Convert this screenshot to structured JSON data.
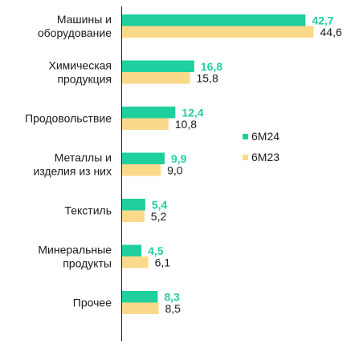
{
  "chart_data": {
    "type": "bar",
    "orientation": "horizontal",
    "categories": [
      [
        "Машины и",
        "оборудование"
      ],
      [
        "Химическая",
        "продукция"
      ],
      [
        "Продовольствие"
      ],
      [
        "Металлы и",
        "изделия из них"
      ],
      [
        "Текстиль"
      ],
      [
        "Минеральные",
        "продукты"
      ],
      [
        "Прочее"
      ]
    ],
    "series": [
      {
        "name": "6M24",
        "color": "#1fcf9e",
        "values": [
          42.7,
          16.8,
          12.4,
          9.9,
          5.4,
          4.5,
          8.3
        ],
        "labels": [
          "42,7",
          "16,8",
          "12,4",
          "9,9",
          "5,4",
          "4,5",
          "8,3"
        ]
      },
      {
        "name": "6M23",
        "color": "#fbd98a",
        "values": [
          44.6,
          15.8,
          10.8,
          9.0,
          5.2,
          6.1,
          8.5
        ],
        "labels": [
          "44,6",
          "15,8",
          "10,8",
          "9,0",
          "5,2",
          "6,1",
          "8,5"
        ]
      }
    ],
    "xlim": [
      0,
      50
    ],
    "grid": false,
    "legend_position": "right"
  }
}
